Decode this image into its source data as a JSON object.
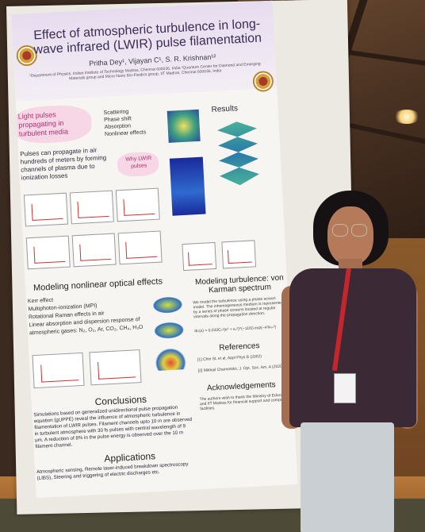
{
  "poster": {
    "title": "Effect of atmospheric turbulence in long-wave infrared (LWIR) pulse filamentation",
    "authors": "Pritha Dey¹, Vijayan C¹, S. R. Krishnan¹²",
    "affiliation": "¹Department of Physics, Indian Institute of Technology Madras, Chennai 600036, India  ²Quantum Center for Diamond and Emerging Materials group and Micro Nano Bio-Fluidics group, IIT Madras, Chennai 600036, India",
    "intro_bubble": "Light pulses propagating in turbulent media",
    "bullets": [
      "Scattering",
      "Phase shift",
      "Absorption",
      "Nonlinear effects"
    ],
    "intro_text": "Pulses can propagate in air hundreds of meters by forming channels of plasma due to ionization losses",
    "why_bubble": "Why LWIR pulses",
    "results_head": "Results",
    "modeling_head": "Modeling nonlinear optical effects",
    "modeling_items": [
      "Kerr effect",
      "Multiphoton-ionization (MPI)",
      "Rotational Raman effects in air",
      "Linear absorption and dispersion response of atmospheric gases: N₂, O₂, Ar, CO₂, CH₄, H₂O"
    ],
    "turb_head": "Modeling turbulence: von Karman spectrum",
    "turb_text": "We model the turbulence using a phase screen model. The inhomogeneous medium is represented by a series of phase screens located at regular intervals along the propagation direction.",
    "formula": "Φₙ(κ) = 0.033Cₙ²(κ² + κ₀²)^(−11/6) exp(−κ²/κₘ²)",
    "references_head": "References",
    "ref1": "[1] Chin SL et al. Appl Phys B (2002)",
    "ref2": "[2] Mikhail Charnotskii, J. Opt. Soc. Am. A (2020)",
    "ack_head": "Acknowledgements",
    "ack_text": "The authors wish to thank the Ministry of Education and IIT Madras for financial support and computing facilities.",
    "conclusions_head": "Conclusions",
    "conclusions_text": "Simulations based on generalized unidirectional pulse propagation equation (gUPPE) reveal the influence of atmospheric turbulence in filamentation of LWIR pulses. Filament channels upto 10 m are observed in turbulent atmosphere with 30 fs pulses with central wavelength of 9 μm. A reduction of 8% in the pulse energy is observed over the 10 m filament channel.",
    "applications_head": "Applications",
    "applications_text": "Atmospheric sensing, Remote laser-induced breakdown spectroscopy (LIBS), Steering and triggering of electric discharges etc."
  },
  "colors": {
    "poster_header": "#e7dcef",
    "bubble": "#f7d6e6",
    "lanyard": "#c4262e",
    "shirt": "#3b2a36"
  }
}
